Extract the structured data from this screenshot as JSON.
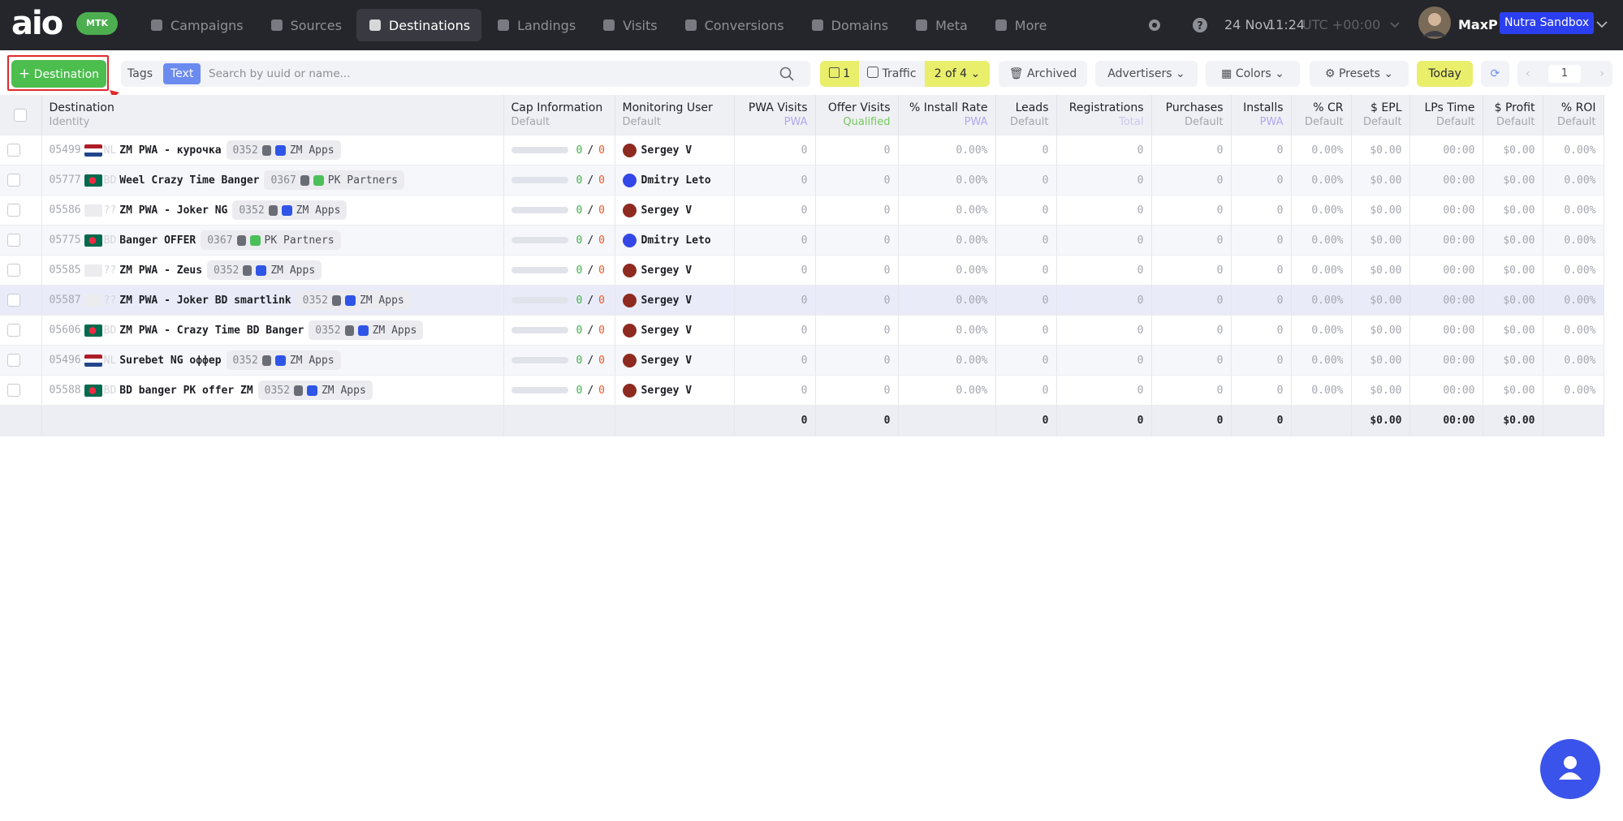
{
  "nav": {
    "logo": "aio",
    "badge": "MTK",
    "active_item": 2,
    "items": [
      "Campaigns",
      "Sources",
      "Destinations",
      "Landings",
      "Visits",
      "Conversions",
      "Domains",
      "Meta",
      "More"
    ],
    "date": "24 Nov",
    "time": "11:24",
    "timezone": "UTC +00:00",
    "user": "MaxP",
    "workspace": "Nutra Sandbox"
  },
  "toolbar": {
    "add_button": "Destination",
    "tags": "Tags",
    "text": "Text",
    "search_placeholder": "Search by uuid or name...",
    "filter_count": "1",
    "traffic": "Traffic",
    "traffic_value": "2 of 4",
    "archived": "Archived",
    "advertisers": "Advertisers",
    "colors": "Colors",
    "presets": "Presets",
    "today": "Today",
    "page": "1"
  },
  "table": {
    "cap_separator": "/",
    "columns": [
      {
        "title": "Destination",
        "subtitle": "Identity",
        "subtitle_color": "#a3a5ad"
      },
      {
        "title": "Cap Information",
        "subtitle": "Default",
        "subtitle_color": "#a3a5ad"
      },
      {
        "title": "Monitoring User",
        "subtitle": "Default",
        "subtitle_color": "#a3a5ad"
      },
      {
        "title": "PWA Visits",
        "subtitle": "PWA",
        "subtitle_color": "#b1a6ee"
      },
      {
        "title": "Offer Visits",
        "subtitle": "Qualified",
        "subtitle_color": "#74c85f"
      },
      {
        "title": "% Install Rate",
        "subtitle": "PWA",
        "subtitle_color": "#b1a6ee"
      },
      {
        "title": "Leads",
        "subtitle": "Default",
        "subtitle_color": "#a3a5ad"
      },
      {
        "title": "Registrations",
        "subtitle": "Total",
        "subtitle_color": "#c9c6f0"
      },
      {
        "title": "Purchases",
        "subtitle": "Default",
        "subtitle_color": "#a3a5ad"
      },
      {
        "title": "Installs",
        "subtitle": "PWA",
        "subtitle_color": "#b1a6ee"
      },
      {
        "title": "% CR",
        "subtitle": "Default",
        "subtitle_color": "#a3a5ad"
      },
      {
        "title": "$ EPL",
        "subtitle": "Default",
        "subtitle_color": "#a3a5ad"
      },
      {
        "title": "LPs Time",
        "subtitle": "Default",
        "subtitle_color": "#a3a5ad"
      },
      {
        "title": "$ Profit",
        "subtitle": "Default",
        "subtitle_color": "#a3a5ad"
      },
      {
        "title": "% ROI",
        "subtitle": "Default",
        "subtitle_color": "#a3a5ad"
      }
    ],
    "rows": [
      {
        "id": "05499",
        "flag_colors": [
          "#ae1c28",
          "#ffffff",
          "#21468b"
        ],
        "country": "NL",
        "name": "ZM PWA - курочка",
        "tag": "0352",
        "source": "ZM Apps",
        "source_color": "#2f55e6",
        "cap": [
          "0",
          "0"
        ],
        "user": "Sergey V",
        "avatar_color": "#8e2a1f",
        "values": [
          "0",
          "0",
          "0.00%",
          "0",
          "0",
          "0",
          "0",
          "0.00%",
          "$0.00",
          "00:00",
          "$0.00",
          "0.00%"
        ]
      },
      {
        "id": "05777",
        "flag_colors": [
          "#006a4e",
          "#f42a41"
        ],
        "country": "BD",
        "name": "Weel Crazy Time Banger",
        "tag": "0367",
        "source": "PK Partners",
        "source_color": "#4cbf5a",
        "cap": [
          "0",
          "0"
        ],
        "user": "Dmitry Leto",
        "avatar_color": "#3346e6",
        "values": [
          "0",
          "0",
          "0.00%",
          "0",
          "0",
          "0",
          "0",
          "0.00%",
          "$0.00",
          "00:00",
          "$0.00",
          "0.00%"
        ]
      },
      {
        "id": "05586",
        "country": "??",
        "name": "ZM PWA - Joker NG",
        "tag": "0352",
        "source": "ZM Apps",
        "source_color": "#2f55e6",
        "cap": [
          "0",
          "0"
        ],
        "user": "Sergey V",
        "avatar_color": "#8e2a1f",
        "values": [
          "0",
          "0",
          "0.00%",
          "0",
          "0",
          "0",
          "0",
          "0.00%",
          "$0.00",
          "00:00",
          "$0.00",
          "0.00%"
        ]
      },
      {
        "id": "05775",
        "flag_colors": [
          "#006a4e",
          "#f42a41"
        ],
        "country": "BD",
        "name": "Banger OFFER",
        "tag": "0367",
        "source": "PK Partners",
        "source_color": "#4cbf5a",
        "cap": [
          "0",
          "0"
        ],
        "user": "Dmitry Leto",
        "avatar_color": "#3346e6",
        "values": [
          "0",
          "0",
          "0.00%",
          "0",
          "0",
          "0",
          "0",
          "0.00%",
          "$0.00",
          "00:00",
          "$0.00",
          "0.00%"
        ]
      },
      {
        "id": "05585",
        "country": "??",
        "name": "ZM PWA - Zeus",
        "tag": "0352",
        "source": "ZM Apps",
        "source_color": "#2f55e6",
        "cap": [
          "0",
          "0"
        ],
        "user": "Sergey V",
        "avatar_color": "#8e2a1f",
        "values": [
          "0",
          "0",
          "0.00%",
          "0",
          "0",
          "0",
          "0",
          "0.00%",
          "$0.00",
          "00:00",
          "$0.00",
          "0.00%"
        ]
      },
      {
        "id": "05587",
        "country": "??",
        "name": "ZM PWA - Joker BD smartlink",
        "tag": "0352",
        "source": "ZM Apps",
        "source_color": "#2f55e6",
        "cap": [
          "0",
          "0"
        ],
        "user": "Sergey V",
        "avatar_color": "#8e2a1f",
        "highlighted": true,
        "values": [
          "0",
          "0",
          "0.00%",
          "0",
          "0",
          "0",
          "0",
          "0.00%",
          "$0.00",
          "00:00",
          "$0.00",
          "0.00%"
        ]
      },
      {
        "id": "05606",
        "flag_colors": [
          "#006a4e",
          "#f42a41"
        ],
        "country": "BD",
        "name": "ZM PWA - Crazy Time BD Banger",
        "tag": "0352",
        "source": "ZM Apps",
        "source_color": "#2f55e6",
        "cap": [
          "0",
          "0"
        ],
        "user": "Sergey V",
        "avatar_color": "#8e2a1f",
        "values": [
          "0",
          "0",
          "0.00%",
          "0",
          "0",
          "0",
          "0",
          "0.00%",
          "$0.00",
          "00:00",
          "$0.00",
          "0.00%"
        ]
      },
      {
        "id": "05496",
        "flag_colors": [
          "#ae1c28",
          "#ffffff",
          "#21468b"
        ],
        "country": "NL",
        "name": "Surebet NG оффер",
        "tag": "0352",
        "source": "ZM Apps",
        "source_color": "#2f55e6",
        "cap": [
          "0",
          "0"
        ],
        "user": "Sergey V",
        "avatar_color": "#8e2a1f",
        "values": [
          "0",
          "0",
          "0.00%",
          "0",
          "0",
          "0",
          "0",
          "0.00%",
          "$0.00",
          "00:00",
          "$0.00",
          "0.00%"
        ]
      },
      {
        "id": "05588",
        "flag_colors": [
          "#006a4e",
          "#f42a41"
        ],
        "country": "BD",
        "name": "BD banger PK offer ZM",
        "tag": "0352",
        "source": "ZM Apps",
        "source_color": "#2f55e6",
        "cap": [
          "0",
          "0"
        ],
        "user": "Sergey V",
        "avatar_color": "#8e2a1f",
        "values": [
          "0",
          "0",
          "0.00%",
          "0",
          "0",
          "0",
          "0",
          "0.00%",
          "$0.00",
          "00:00",
          "$0.00",
          "0.00%"
        ]
      }
    ],
    "totals": [
      null,
      null,
      null,
      "0",
      "0",
      null,
      "0",
      "0",
      "0",
      "0",
      null,
      "$0.00",
      "00:00",
      "$0.00",
      null
    ]
  }
}
